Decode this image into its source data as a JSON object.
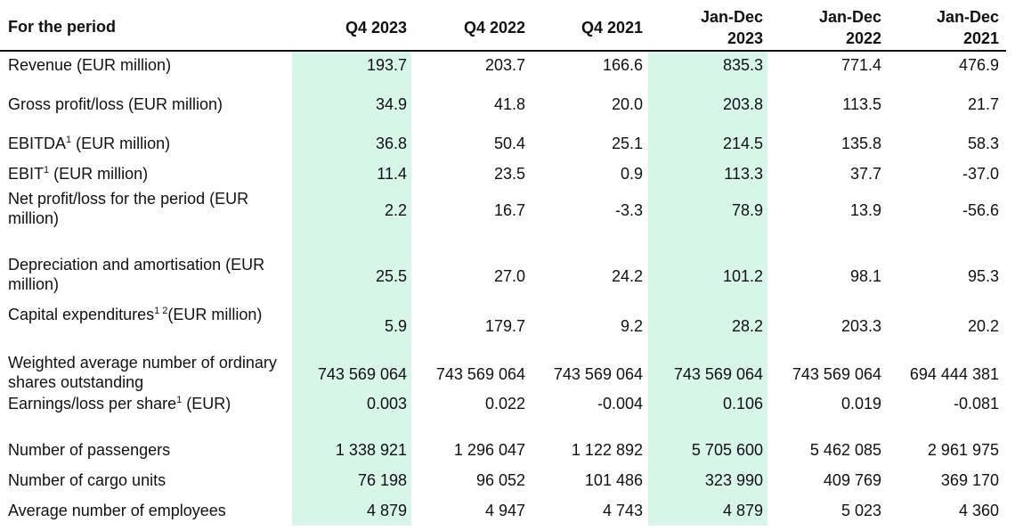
{
  "header": {
    "label": "For the period",
    "columns": [
      {
        "line1": "",
        "line2": "Q4 2023"
      },
      {
        "line1": "",
        "line2": "Q4 2022"
      },
      {
        "line1": "",
        "line2": "Q4 2021"
      },
      {
        "line1": "Jan-Dec",
        "line2": "2023"
      },
      {
        "line1": "Jan-Dec",
        "line2": "2022"
      },
      {
        "line1": "Jan-Dec",
        "line2": "2021"
      }
    ]
  },
  "rows": [
    {
      "label": "Revenue (EUR million)",
      "values": [
        "193.7",
        "203.7",
        "166.6",
        "835.3",
        "771.4",
        "476.9"
      ]
    },
    {
      "label": "Gross profit/loss (EUR million)",
      "values": [
        "34.9",
        "41.8",
        "20.0",
        "203.8",
        "113.5",
        "21.7"
      ]
    },
    {
      "label_pre": "EBITDA",
      "label_sup": "1",
      "label_post": " (EUR million)",
      "values": [
        "36.8",
        "50.4",
        "25.1",
        "214.5",
        "135.8",
        "58.3"
      ]
    },
    {
      "label_pre": "EBIT",
      "label_sup": "1",
      "label_post": " (EUR million)",
      "values": [
        "11.4",
        "23.5",
        "0.9",
        "113.3",
        "37.7",
        "-37.0"
      ]
    },
    {
      "label": "Net profit/loss for the period (EUR million)",
      "values": [
        "2.2",
        "16.7",
        "-3.3",
        "78.9",
        "13.9",
        "-56.6"
      ]
    },
    {
      "label": "Depreciation and amortisation (EUR million)",
      "values": [
        "25.5",
        "27.0",
        "24.2",
        "101.2",
        "98.1",
        "95.3"
      ]
    },
    {
      "label_pre": "Capital expenditures",
      "label_sup": "1 2",
      "label_post": "(EUR million)",
      "values": [
        "5.9",
        "179.7",
        "9.2",
        "28.2",
        "203.3",
        "20.2"
      ]
    },
    {
      "label": "Weighted average number of ordinary shares outstanding",
      "values": [
        "743 569 064",
        "743 569 064",
        "743 569 064",
        "743 569 064",
        "743 569 064",
        "694 444 381"
      ]
    },
    {
      "label_pre": "Earnings/loss per share",
      "label_sup": "1",
      "label_post": " (EUR)",
      "values": [
        "0.003",
        "0.022",
        "-0.004",
        "0.106",
        "0.019",
        "-0.081"
      ]
    },
    {
      "label": "Number of passengers",
      "values": [
        "1 338 921",
        "1 296 047",
        "1 122 892",
        "5 705 600",
        "5 462 085",
        "2 961 975"
      ]
    },
    {
      "label": "Number of cargo units",
      "values": [
        "76 198",
        "96 052",
        "101 486",
        "323 990",
        "409 769",
        "369 170"
      ]
    },
    {
      "label": "Average number of employees",
      "values": [
        "4 879",
        "4 947",
        "4 743",
        "4 879",
        "5 023",
        "4 360"
      ]
    }
  ]
}
